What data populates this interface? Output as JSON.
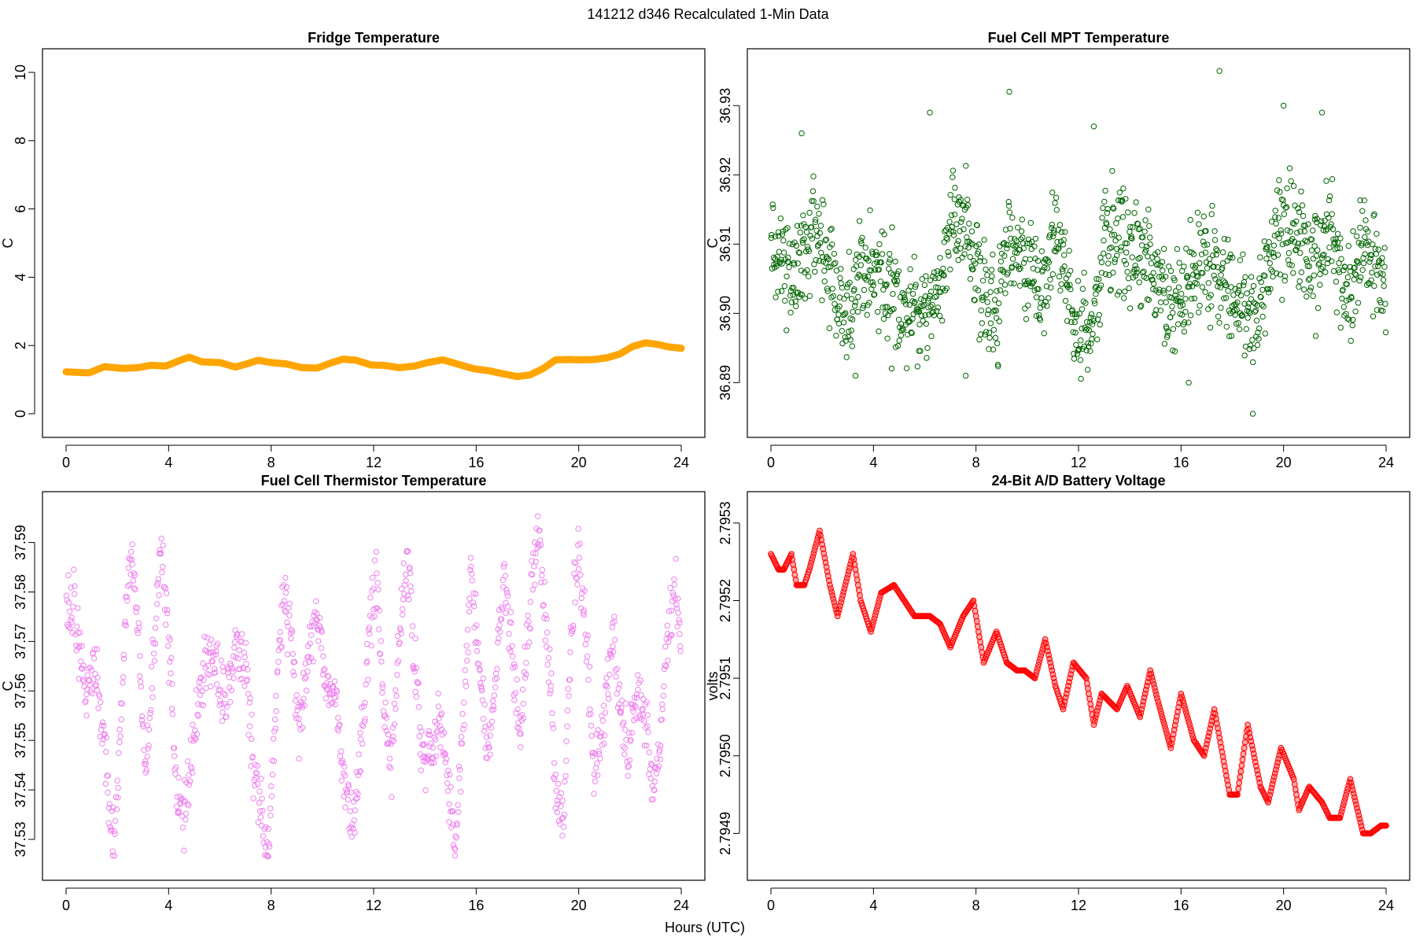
{
  "figure": {
    "title": "141212   d346   Recalculated 1-Min Data",
    "xlabel": "Hours (UTC)"
  },
  "chart_data": [
    {
      "type": "line",
      "title": "Fridge Temperature",
      "xlabel": "Hours (UTC)",
      "ylabel": "C",
      "color": "#FFA500",
      "xlim": [
        0,
        24
      ],
      "ylim": [
        0,
        10
      ],
      "xticks": [
        0,
        4,
        8,
        12,
        16,
        20,
        24
      ],
      "yticks": [
        0,
        2,
        4,
        6,
        8,
        10
      ],
      "ytick_labels": [
        "0",
        "2",
        "4",
        "6",
        "8",
        "10"
      ],
      "x": [
        0,
        0.5,
        0.9,
        1.5,
        2.2,
        2.8,
        3.3,
        3.9,
        4.4,
        4.8,
        5.3,
        6.0,
        6.6,
        7.0,
        7.5,
        8.0,
        8.6,
        9.2,
        9.8,
        10.3,
        10.8,
        11.3,
        11.9,
        12.4,
        13.0,
        13.6,
        14.1,
        14.7,
        15.3,
        15.9,
        16.5,
        17.0,
        17.6,
        18.1,
        18.6,
        19.1,
        19.6,
        20.1,
        20.6,
        21.1,
        21.6,
        22.1,
        22.6,
        23.1,
        23.5,
        24.0
      ],
      "values": [
        1.23,
        1.21,
        1.2,
        1.38,
        1.33,
        1.35,
        1.42,
        1.4,
        1.55,
        1.66,
        1.52,
        1.5,
        1.37,
        1.45,
        1.57,
        1.5,
        1.46,
        1.35,
        1.34,
        1.48,
        1.6,
        1.57,
        1.43,
        1.42,
        1.35,
        1.4,
        1.5,
        1.58,
        1.45,
        1.32,
        1.26,
        1.18,
        1.09,
        1.14,
        1.32,
        1.58,
        1.59,
        1.58,
        1.59,
        1.64,
        1.75,
        1.97,
        2.08,
        2.03,
        1.96,
        1.92
      ]
    },
    {
      "type": "scatter",
      "title": "Fuel Cell MPT Temperature",
      "xlabel": "Hours (UTC)",
      "ylabel": "C",
      "color": "#006400",
      "xlim": [
        0,
        24
      ],
      "ylim": [
        36.8855,
        36.9348
      ],
      "xticks": [
        0,
        4,
        8,
        12,
        16,
        20,
        24
      ],
      "yticks": [
        36.89,
        36.9,
        36.91,
        36.92,
        36.93
      ],
      "ytick_labels": [
        "36.89",
        "36.90",
        "36.91",
        "36.92",
        "36.93"
      ],
      "trend": [
        [
          0,
          36.909
        ],
        [
          0.8,
          36.906
        ],
        [
          1.6,
          36.912
        ],
        [
          2.4,
          36.905
        ],
        [
          3.0,
          36.901
        ],
        [
          3.6,
          36.908
        ],
        [
          4.2,
          36.906
        ],
        [
          5.0,
          36.901
        ],
        [
          5.8,
          36.899
        ],
        [
          6.4,
          36.903
        ],
        [
          7.0,
          36.911
        ],
        [
          7.6,
          36.913
        ],
        [
          8.2,
          36.903
        ],
        [
          8.8,
          36.899
        ],
        [
          9.3,
          36.912
        ],
        [
          9.9,
          36.908
        ],
        [
          10.5,
          36.903
        ],
        [
          11.2,
          36.912
        ],
        [
          11.8,
          36.9
        ],
        [
          12.4,
          36.897
        ],
        [
          13.0,
          36.91
        ],
        [
          13.6,
          36.912
        ],
        [
          14.3,
          36.909
        ],
        [
          15.0,
          36.905
        ],
        [
          15.6,
          36.9
        ],
        [
          16.2,
          36.903
        ],
        [
          16.9,
          36.909
        ],
        [
          17.5,
          36.906
        ],
        [
          18.2,
          36.901
        ],
        [
          18.8,
          36.898
        ],
        [
          19.4,
          36.906
        ],
        [
          20.0,
          36.913
        ],
        [
          20.6,
          36.911
        ],
        [
          21.2,
          36.907
        ],
        [
          21.8,
          36.912
        ],
        [
          22.4,
          36.903
        ],
        [
          23.1,
          36.909
        ],
        [
          23.6,
          36.907
        ],
        [
          24.0,
          36.902
        ]
      ],
      "noise": 0.0055,
      "spikes": [
        [
          1.2,
          36.926
        ],
        [
          6.2,
          36.929
        ],
        [
          9.3,
          36.932
        ],
        [
          12.6,
          36.927
        ],
        [
          17.5,
          36.935
        ],
        [
          20.0,
          36.93
        ],
        [
          21.5,
          36.929
        ],
        [
          18.8,
          36.8855
        ],
        [
          7.6,
          36.891
        ],
        [
          3.3,
          36.891
        ],
        [
          16.3,
          36.89
        ]
      ]
    },
    {
      "type": "scatter",
      "title": "Fuel Cell Thermistor Temperature",
      "xlabel": "Hours (UTC)",
      "ylabel": "C",
      "color": "#EE82EE",
      "xlim": [
        0,
        24
      ],
      "ylim": [
        37.5265,
        37.5955
      ],
      "xticks": [
        0,
        4,
        8,
        12,
        16,
        20,
        24
      ],
      "yticks": [
        37.53,
        37.54,
        37.55,
        37.56,
        37.57,
        37.58,
        37.59
      ],
      "ytick_labels": [
        "37.53",
        "37.54",
        "37.55",
        "37.56",
        "37.57",
        "37.58",
        "37.59"
      ],
      "trend": [
        [
          0,
          37.574
        ],
        [
          0.3,
          37.578
        ],
        [
          0.6,
          37.566
        ],
        [
          0.8,
          37.56
        ],
        [
          1.1,
          37.567
        ],
        [
          1.4,
          37.555
        ],
        [
          1.7,
          37.538
        ],
        [
          1.9,
          37.53
        ],
        [
          2.2,
          37.56
        ],
        [
          2.5,
          37.59
        ],
        [
          2.8,
          37.575
        ],
        [
          3.1,
          37.54
        ],
        [
          3.4,
          37.565
        ],
        [
          3.7,
          37.59
        ],
        [
          4.0,
          37.57
        ],
        [
          4.3,
          37.54
        ],
        [
          4.6,
          37.535
        ],
        [
          5.0,
          37.55
        ],
        [
          5.4,
          37.566
        ],
        [
          5.8,
          37.566
        ],
        [
          6.2,
          37.558
        ],
        [
          6.6,
          37.57
        ],
        [
          7.0,
          37.566
        ],
        [
          7.3,
          37.545
        ],
        [
          7.6,
          37.535
        ],
        [
          7.9,
          37.528
        ],
        [
          8.2,
          37.56
        ],
        [
          8.5,
          37.58
        ],
        [
          8.8,
          37.57
        ],
        [
          9.1,
          37.55
        ],
        [
          9.5,
          37.57
        ],
        [
          9.8,
          37.576
        ],
        [
          10.1,
          37.562
        ],
        [
          10.5,
          37.56
        ],
        [
          10.9,
          37.54
        ],
        [
          11.2,
          37.533
        ],
        [
          11.5,
          37.55
        ],
        [
          11.8,
          37.57
        ],
        [
          12.1,
          37.583
        ],
        [
          12.4,
          37.555
        ],
        [
          12.7,
          37.545
        ],
        [
          13.0,
          37.57
        ],
        [
          13.3,
          37.586
        ],
        [
          13.6,
          37.565
        ],
        [
          13.9,
          37.545
        ],
        [
          14.3,
          37.547
        ],
        [
          14.6,
          37.556
        ],
        [
          14.9,
          37.54
        ],
        [
          15.2,
          37.53
        ],
        [
          15.5,
          37.555
        ],
        [
          15.8,
          37.586
        ],
        [
          16.2,
          37.56
        ],
        [
          16.5,
          37.545
        ],
        [
          16.8,
          37.565
        ],
        [
          17.1,
          37.585
        ],
        [
          17.4,
          37.568
        ],
        [
          17.7,
          37.55
        ],
        [
          18.0,
          37.57
        ],
        [
          18.4,
          37.593
        ],
        [
          18.8,
          37.57
        ],
        [
          19.1,
          37.54
        ],
        [
          19.4,
          37.532
        ],
        [
          19.7,
          37.57
        ],
        [
          20.0,
          37.588
        ],
        [
          20.3,
          37.57
        ],
        [
          20.6,
          37.542
        ],
        [
          21.0,
          37.556
        ],
        [
          21.3,
          37.57
        ],
        [
          21.6,
          37.56
        ],
        [
          21.9,
          37.548
        ],
        [
          22.3,
          37.56
        ],
        [
          22.6,
          37.553
        ],
        [
          22.9,
          37.54
        ],
        [
          23.2,
          37.55
        ],
        [
          23.5,
          37.575
        ],
        [
          23.8,
          37.58
        ],
        [
          24.0,
          37.565
        ]
      ],
      "noise": 0.0045,
      "spikes": []
    },
    {
      "type": "line",
      "title": "24-Bit A/D Battery Voltage",
      "xlabel": "Hours (UTC)",
      "ylabel": "volts",
      "color": "#FF0000",
      "xlim": [
        0,
        24
      ],
      "ylim": [
        2.79487,
        2.79531
      ],
      "xticks": [
        0,
        4,
        8,
        12,
        16,
        20,
        24
      ],
      "yticks": [
        2.7949,
        2.795,
        2.7951,
        2.7952,
        2.7953
      ],
      "ytick_labels": [
        "2.7949",
        "2.7950",
        "2.7951",
        "2.7952",
        "2.7953"
      ],
      "x": [
        0,
        0.3,
        0.5,
        0.8,
        1.0,
        1.3,
        1.5,
        1.9,
        2.3,
        2.6,
        2.9,
        3.2,
        3.5,
        3.9,
        4.3,
        4.8,
        5.2,
        5.6,
        6.0,
        6.2,
        6.6,
        7.0,
        7.5,
        7.9,
        8.3,
        8.8,
        9.2,
        9.6,
        9.9,
        10.3,
        10.7,
        11.1,
        11.4,
        11.8,
        12.3,
        12.6,
        12.9,
        13.5,
        13.9,
        14.4,
        14.8,
        15.1,
        15.6,
        16.0,
        16.5,
        16.9,
        17.3,
        17.9,
        18.2,
        18.6,
        19.1,
        19.4,
        19.9,
        20.4,
        20.6,
        21.0,
        21.5,
        21.8,
        22.2,
        22.6,
        23.1,
        23.4,
        23.8,
        24.0
      ],
      "values": [
        2.79526,
        2.79524,
        2.79524,
        2.79526,
        2.79522,
        2.79522,
        2.79524,
        2.79529,
        2.79522,
        2.79518,
        2.79522,
        2.79526,
        2.7952,
        2.79516,
        2.79521,
        2.79522,
        2.7952,
        2.79518,
        2.79518,
        2.79518,
        2.79517,
        2.79514,
        2.79518,
        2.7952,
        2.79512,
        2.79516,
        2.79512,
        2.79511,
        2.79511,
        2.7951,
        2.79515,
        2.79509,
        2.79506,
        2.79512,
        2.7951,
        2.79504,
        2.79508,
        2.79506,
        2.79509,
        2.79505,
        2.79511,
        2.79507,
        2.79501,
        2.79508,
        2.79502,
        2.795,
        2.79506,
        2.79495,
        2.79495,
        2.79504,
        2.79496,
        2.79494,
        2.79501,
        2.79497,
        2.79493,
        2.79496,
        2.79494,
        2.79492,
        2.79492,
        2.79497,
        2.7949,
        2.7949,
        2.79491,
        2.79491
      ]
    }
  ]
}
